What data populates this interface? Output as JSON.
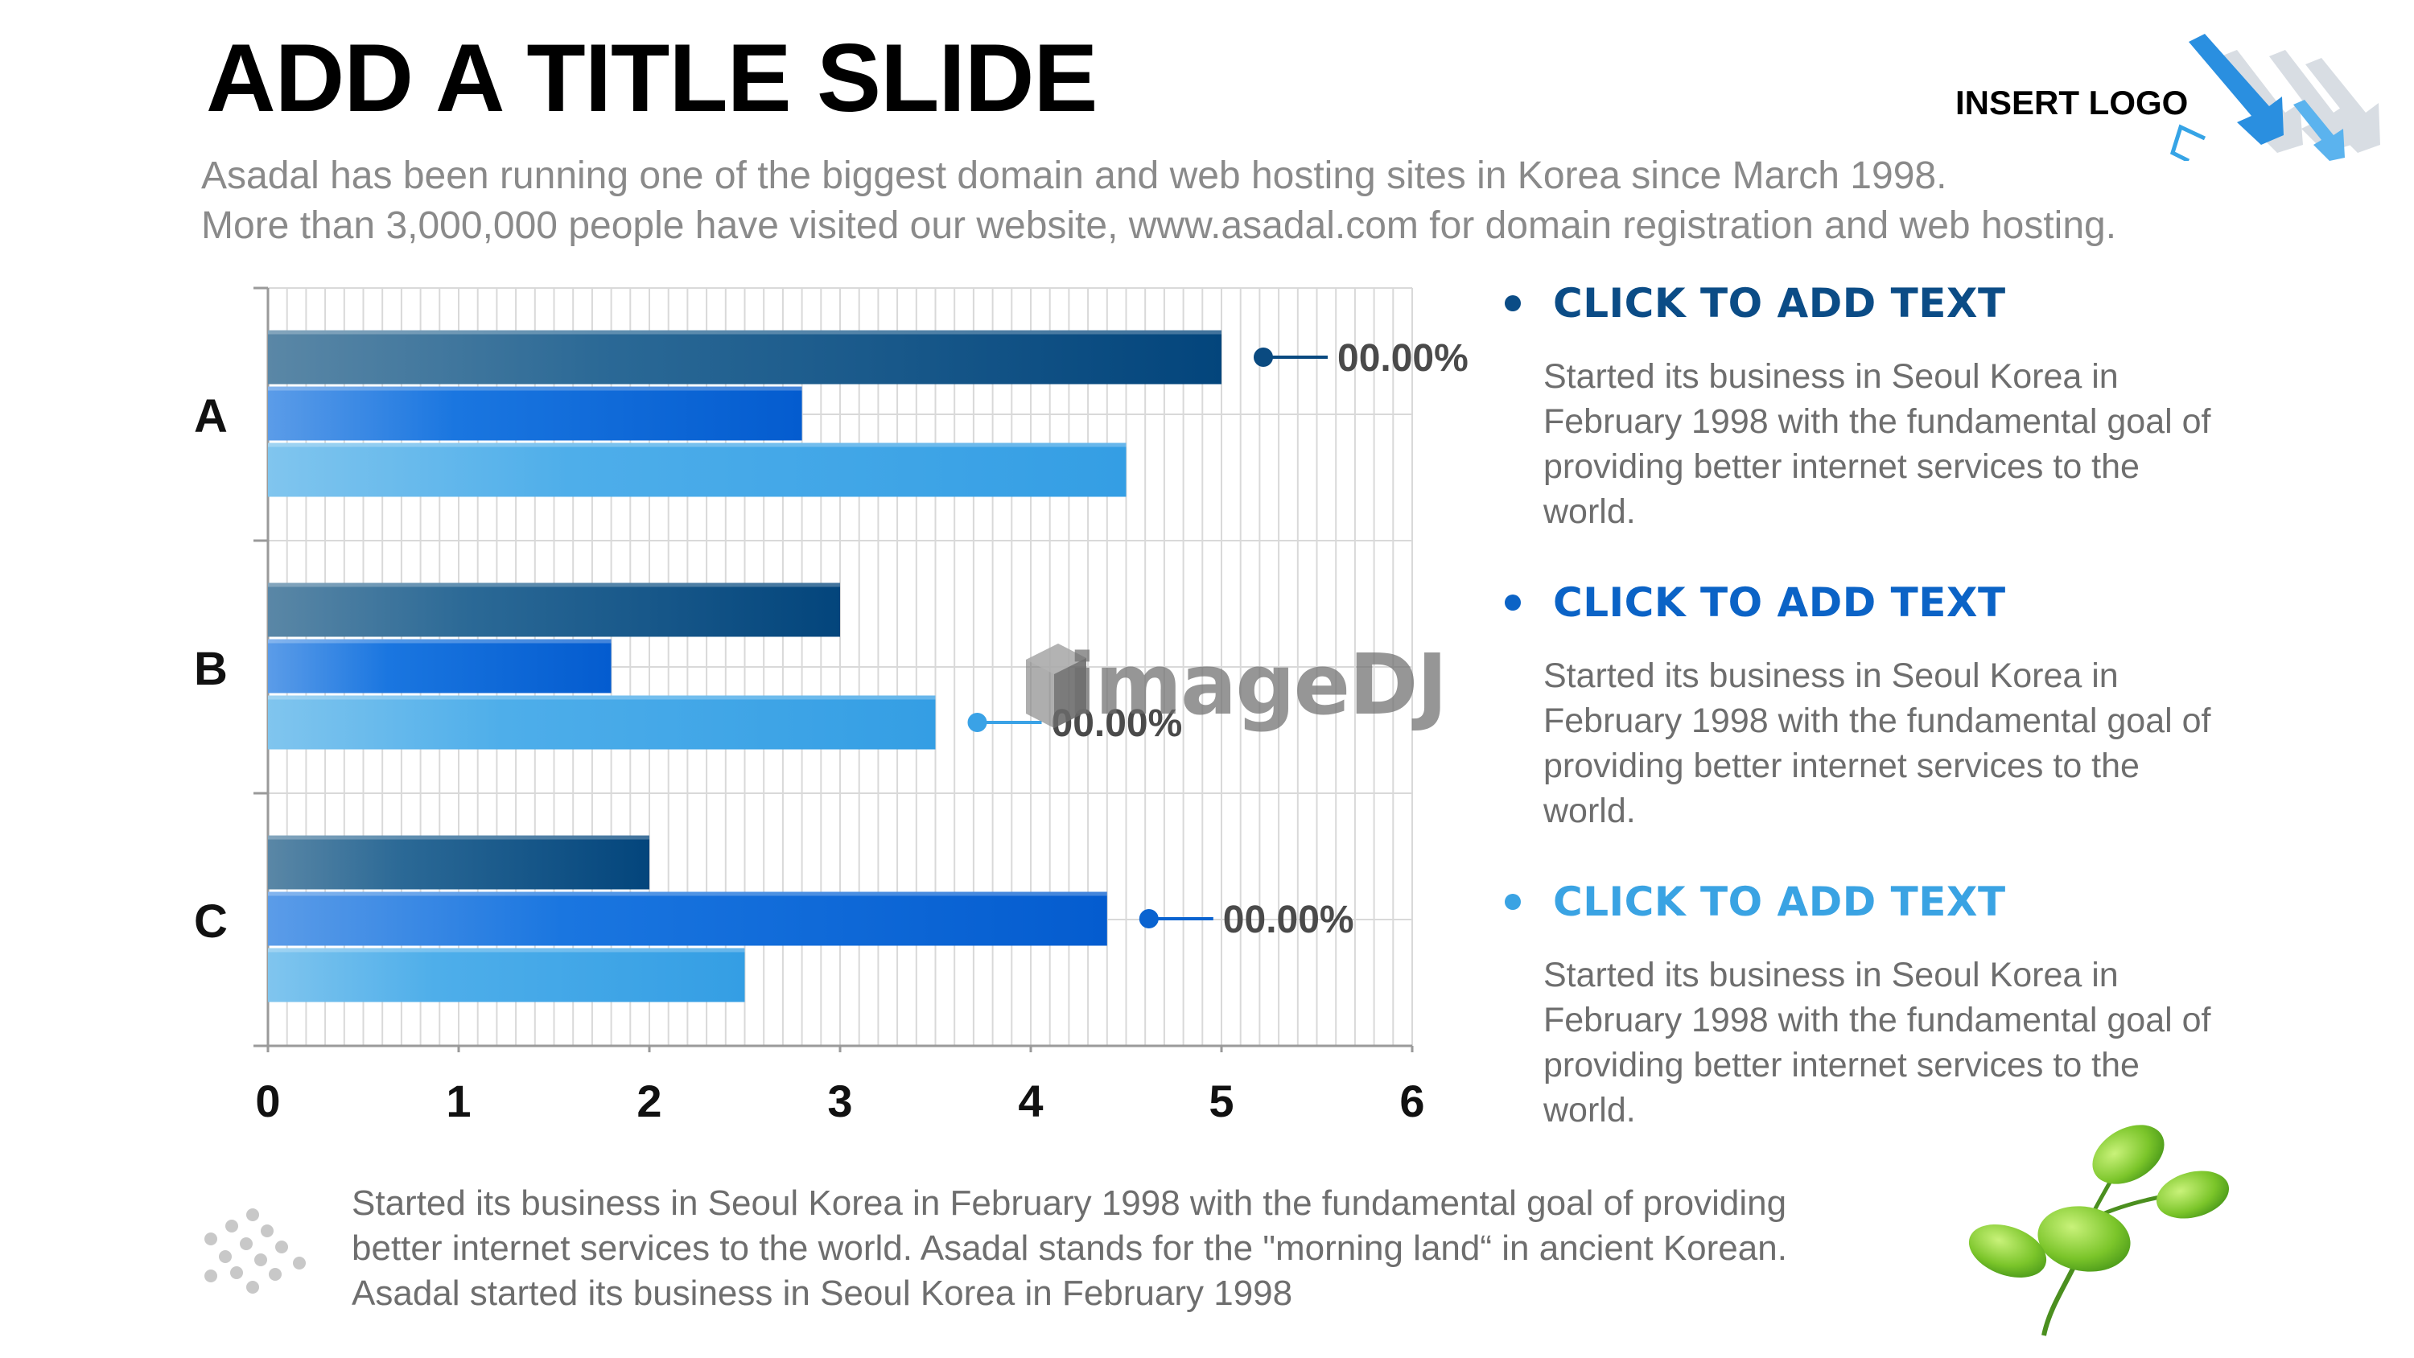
{
  "slide": {
    "title": "ADD A TITLE SLIDE",
    "subtitle_lines": [
      "Asadal has been running one of the biggest domain and web hosting sites in Korea since March 1998.",
      "More than 3,000,000 people have visited our website,  www.asadal.com for domain registration and web hosting."
    ],
    "logo_text": "INSERT LOGO",
    "watermark": "imageDJ"
  },
  "chart_data": {
    "type": "bar",
    "orientation": "horizontal",
    "categories": [
      "A",
      "B",
      "C"
    ],
    "series": [
      {
        "values": [
          5,
          3,
          2
        ],
        "color": "#0a4a80"
      },
      {
        "values": [
          2.8,
          1.8,
          4.4
        ],
        "color": "#0a63d0"
      },
      {
        "values": [
          4.5,
          3.5,
          2.5
        ],
        "color": "#3aa2e6"
      }
    ],
    "xlim": [
      0,
      6
    ],
    "xticks": [
      "0",
      "1",
      "2",
      "3",
      "4",
      "5",
      "6"
    ],
    "grid": true,
    "callouts": [
      {
        "category": "A",
        "series": 0,
        "label": "00.00%",
        "color": "#0a4a80"
      },
      {
        "category": "B",
        "series": 2,
        "label": "00.00%",
        "color": "#3aa2e6"
      },
      {
        "category": "C",
        "series": 1,
        "label": "00.00%",
        "color": "#0a63d0"
      }
    ]
  },
  "bullets": [
    {
      "title": "CLICK TO ADD TEXT",
      "color": "#0b4c86",
      "text": "Started its business in Seoul Korea  in February 1998 with the fundamental goal of providing better internet services to the world."
    },
    {
      "title": "CLICK TO ADD TEXT",
      "color": "#0b63c6",
      "text": "Started its business in Seoul Korea  in February 1998 with the fundamental goal of providing better internet services to the world."
    },
    {
      "title": "CLICK TO ADD TEXT",
      "color": "#3aa3e3",
      "text": "Started its business in Seoul Korea  in February 1998 with the fundamental goal of providing better internet services to the world."
    }
  ],
  "footer": {
    "lines": [
      "Started its business in Seoul Korea  in February 1998 with the fundamental goal of providing",
      "better internet services to the world. Asadal stands for the \"morning land“ in ancient Korean.",
      "Asadal started its business in Seoul Korea  in February 1998"
    ]
  },
  "icons": {
    "logo": "arrows-logo-icon",
    "footer": "dots-cluster-icon",
    "decor": "sprout-icon"
  }
}
